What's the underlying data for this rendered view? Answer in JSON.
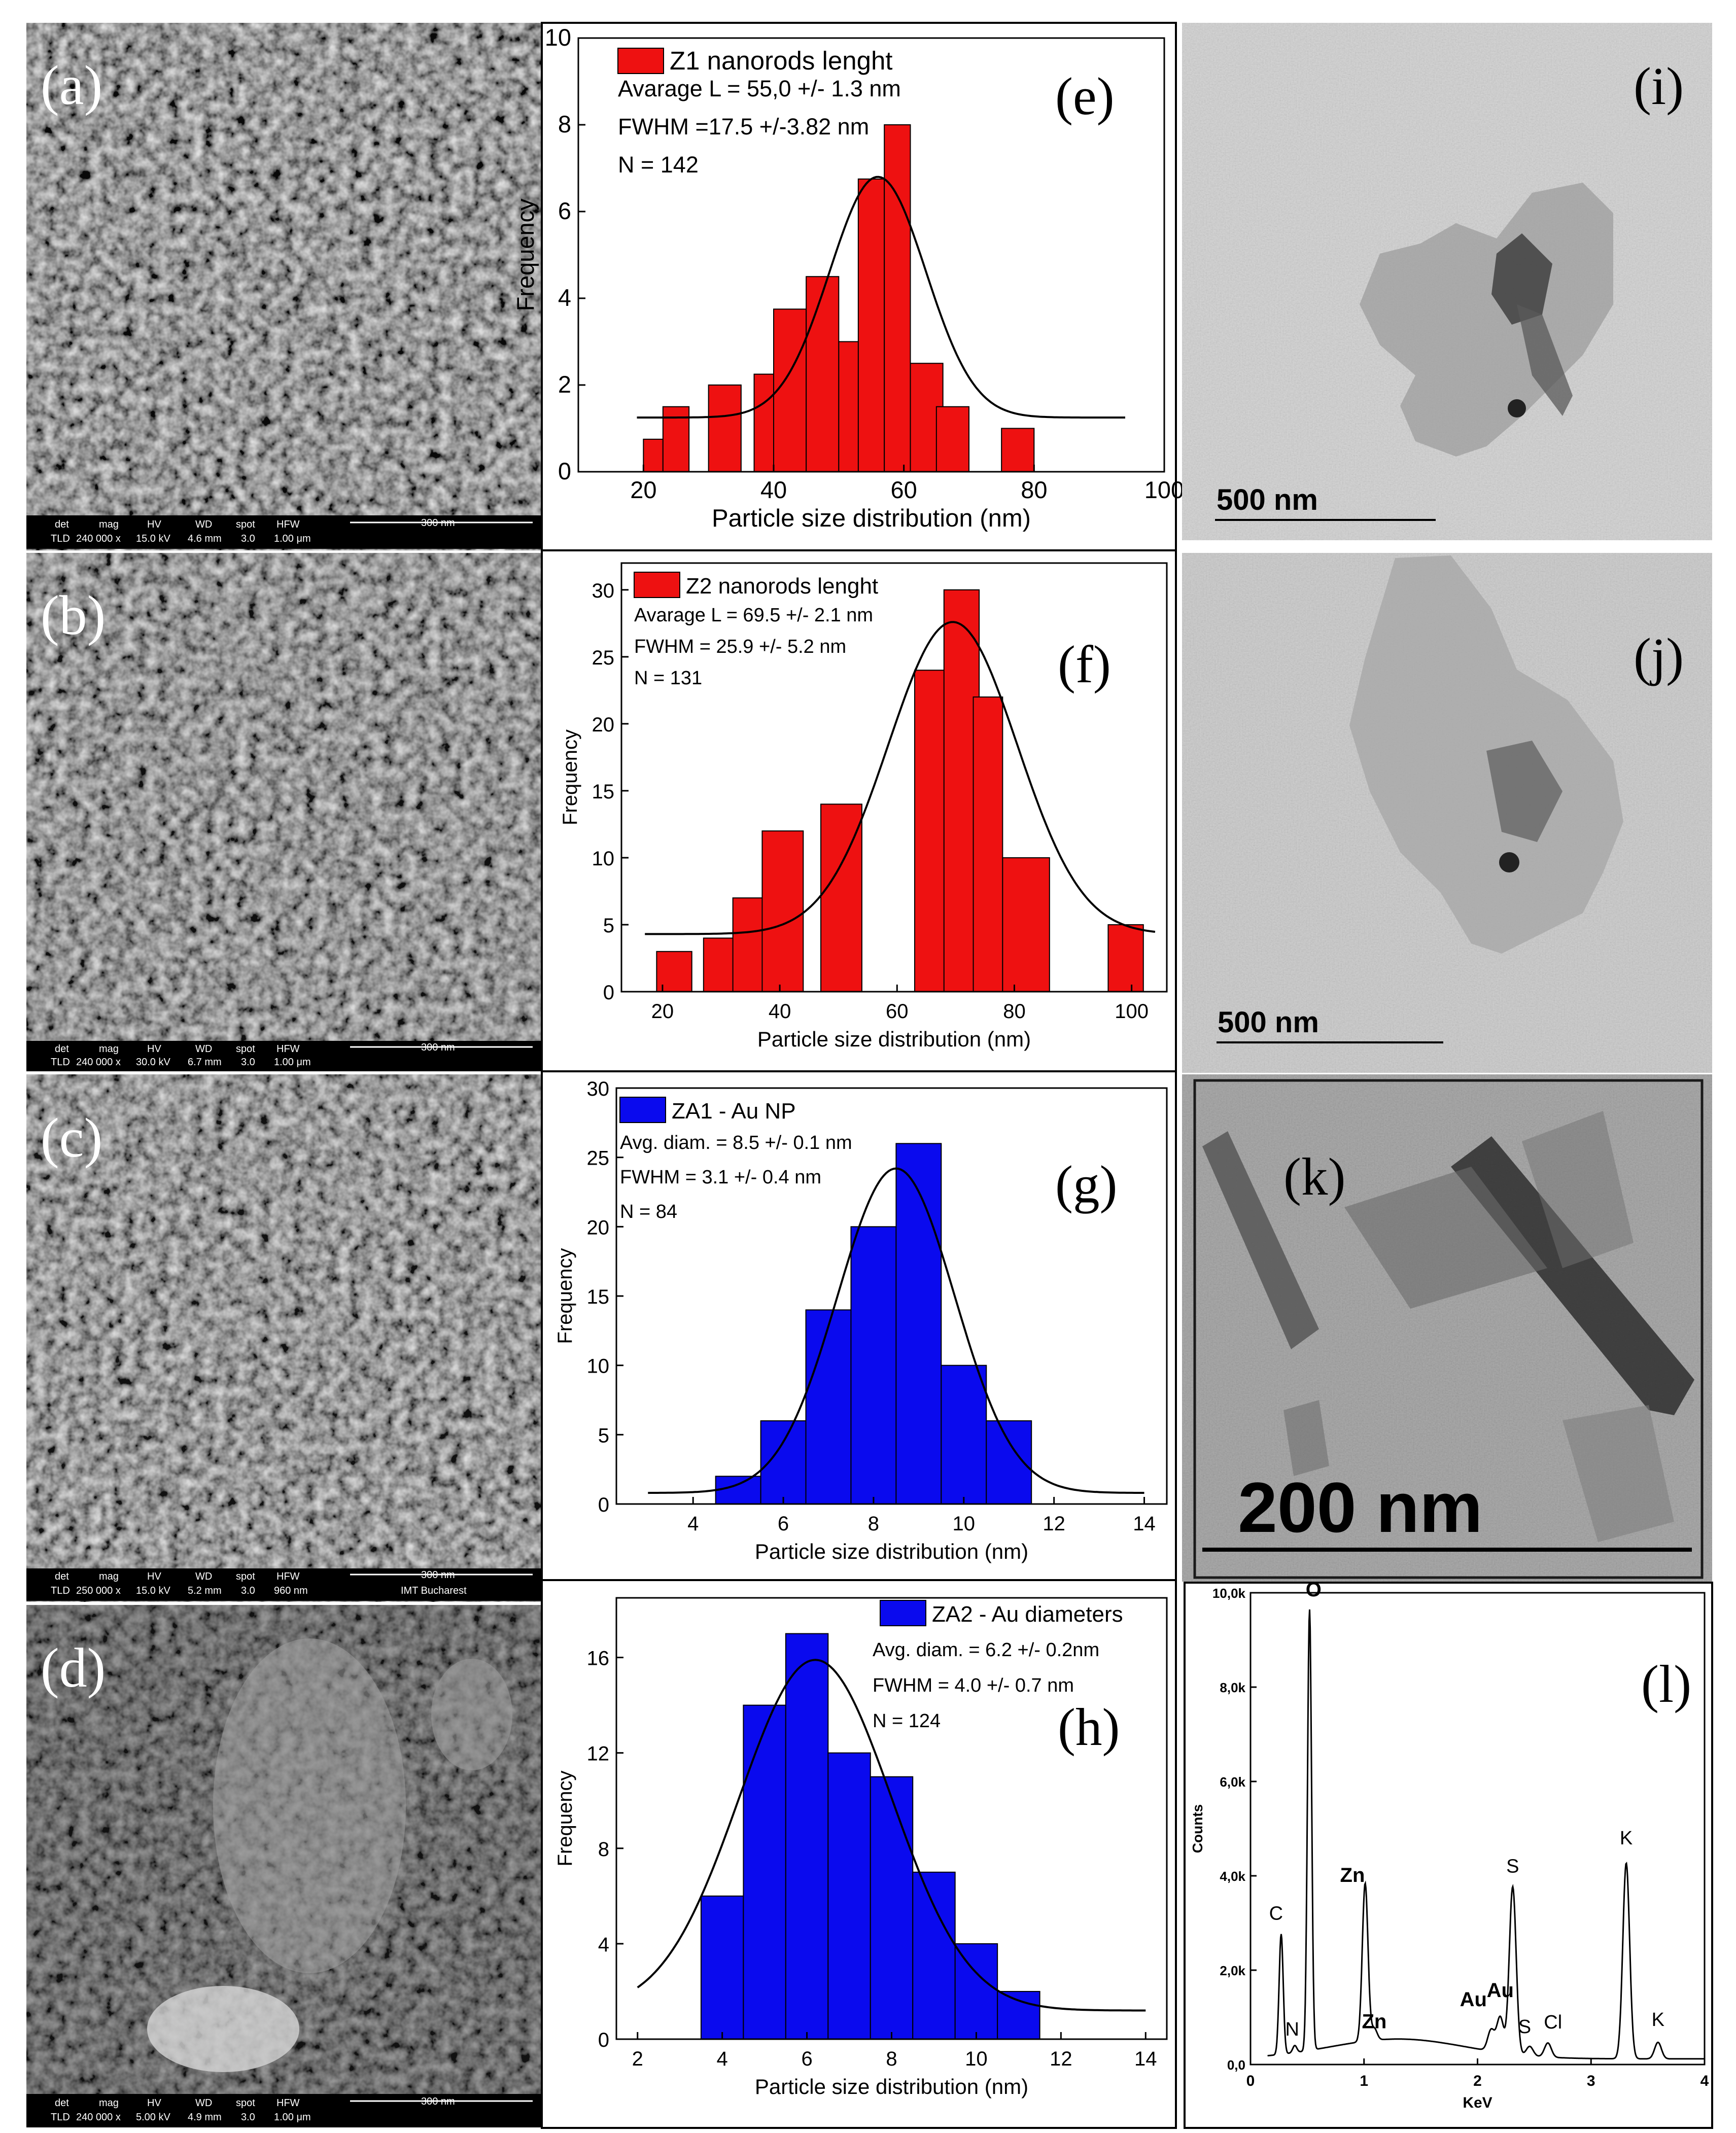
{
  "figure": {
    "sem": [
      {
        "label": "(a)",
        "info": {
          "det": "det",
          "mag": "mag",
          "hv": "HV",
          "wd": "WD",
          "spot": "spot",
          "hfw": "HFW",
          "scale": "300 nm",
          "tld": "TLD",
          "mag_v": "240 000 x",
          "hv_v": "15.0 kV",
          "wd_v": "4.6 mm",
          "spot_v": "3.0",
          "hfw_v": "1.00 μm",
          "extra": ""
        }
      },
      {
        "label": "(b)",
        "info": {
          "det": "det",
          "mag": "mag",
          "hv": "HV",
          "wd": "WD",
          "spot": "spot",
          "hfw": "HFW",
          "scale": "300 nm",
          "tld": "TLD",
          "mag_v": "240 000 x",
          "hv_v": "30.0 kV",
          "wd_v": "6.7 mm",
          "spot_v": "3.0",
          "hfw_v": "1.00 μm",
          "extra": ""
        }
      },
      {
        "label": "(c)",
        "info": {
          "det": "det",
          "mag": "mag",
          "hv": "HV",
          "wd": "WD",
          "spot": "spot",
          "hfw": "HFW",
          "scale": "300 nm",
          "tld": "TLD",
          "mag_v": "250 000 x",
          "hv_v": "15.0 kV",
          "wd_v": "5.2 mm",
          "spot_v": "3.0",
          "hfw_v": "960 nm",
          "extra": "IMT Bucharest"
        }
      },
      {
        "label": "(d)",
        "info": {
          "det": "det",
          "mag": "mag",
          "hv": "HV",
          "wd": "WD",
          "spot": "spot",
          "hfw": "HFW",
          "scale": "300 nm",
          "tld": "TLD",
          "mag_v": "240 000 x",
          "hv_v": "5.00 kV",
          "wd_v": "4.9 mm",
          "spot_v": "3.0",
          "hfw_v": "1.00 μm",
          "extra": ""
        }
      }
    ],
    "tem": [
      {
        "label": "(i)",
        "scale": "500 nm"
      },
      {
        "label": "(j)",
        "scale": "500 nm"
      },
      {
        "label": "(k)",
        "scale": "200 nm"
      }
    ]
  },
  "colors": {
    "red": "#ee1111",
    "blue": "#0a0aee",
    "outline": "#000000"
  },
  "chart_data": [
    {
      "type": "bar",
      "panel": "(e)",
      "legend": "Z1 nanorods lenght",
      "stats": [
        "Avarage L = 55,0 +/- 1.3 nm",
        "FWHM =17.5 +/-3.82 nm",
        "N = 142"
      ],
      "xlabel": "Particle size distribution (nm)",
      "ylabel": "Frequency",
      "xlim": [
        10,
        100
      ],
      "ylim": [
        0,
        10
      ],
      "xticks": [
        20,
        40,
        60,
        80,
        100
      ],
      "yticks": [
        0,
        2,
        4,
        6,
        8,
        10
      ],
      "bars": [
        {
          "x0": 20,
          "x1": 23,
          "y": 0.75
        },
        {
          "x0": 23,
          "x1": 27,
          "y": 1.5
        },
        {
          "x0": 30,
          "x1": 35,
          "y": 2
        },
        {
          "x0": 37,
          "x1": 40,
          "y": 2.25
        },
        {
          "x0": 40,
          "x1": 45,
          "y": 3.75
        },
        {
          "x0": 45,
          "x1": 50,
          "y": 4.5
        },
        {
          "x0": 50,
          "x1": 55,
          "y": 3
        },
        {
          "x0": 53,
          "x1": 57,
          "y": 6.75
        },
        {
          "x0": 57,
          "x1": 61,
          "y": 8
        },
        {
          "x0": 61,
          "x1": 66,
          "y": 2.5
        },
        {
          "x0": 65,
          "x1": 70,
          "y": 1.5
        },
        {
          "x0": 75,
          "x1": 80,
          "y": 1
        }
      ],
      "fit": {
        "base": 1.25,
        "amp": 5.55,
        "center": 56,
        "sigma": 7.4,
        "from": 19,
        "to": 94
      }
    },
    {
      "type": "bar",
      "panel": "(f)",
      "legend": "Z2 nanorods lenght",
      "stats": [
        "Avarage L = 69.5 +/- 2.1 nm",
        "FWHM = 25.9 +/- 5.2 nm",
        "N = 131"
      ],
      "xlabel": "Particle size distribution (nm)",
      "ylabel": "Frequency",
      "xlim": [
        13,
        106
      ],
      "ylim": [
        0,
        32
      ],
      "xticks": [
        20,
        40,
        60,
        80,
        100
      ],
      "yticks": [
        0,
        5,
        10,
        15,
        20,
        25,
        30
      ],
      "bars": [
        {
          "x0": 19,
          "x1": 25,
          "y": 3
        },
        {
          "x0": 27,
          "x1": 33,
          "y": 4
        },
        {
          "x0": 32,
          "x1": 38,
          "y": 7
        },
        {
          "x0": 37,
          "x1": 44,
          "y": 12
        },
        {
          "x0": 47,
          "x1": 54,
          "y": 14
        },
        {
          "x0": 63,
          "x1": 69,
          "y": 24
        },
        {
          "x0": 68,
          "x1": 74,
          "y": 30
        },
        {
          "x0": 73,
          "x1": 78,
          "y": 22
        },
        {
          "x0": 78,
          "x1": 86,
          "y": 10
        },
        {
          "x0": 96,
          "x1": 102,
          "y": 5
        }
      ],
      "fit": {
        "base": 4.3,
        "amp": 23.3,
        "center": 69.5,
        "sigma": 11,
        "from": 17,
        "to": 104
      }
    },
    {
      "type": "bar",
      "panel": "(g)",
      "legend": "ZA1 - Au NP",
      "stats": [
        "Avg. diam. =  8.5 +/- 0.1 nm",
        "FWHM = 3.1 +/- 0.4 nm",
        "N = 84"
      ],
      "xlabel": "Particle size distribution (nm)",
      "ylabel": "Frequency",
      "xlim": [
        2.3,
        14.5
      ],
      "ylim": [
        0,
        30
      ],
      "xticks": [
        4,
        6,
        8,
        10,
        12,
        14
      ],
      "yticks": [
        0,
        5,
        10,
        15,
        20,
        25,
        30
      ],
      "bars": [
        {
          "x0": 4.5,
          "x1": 5.5,
          "y": 2
        },
        {
          "x0": 5.5,
          "x1": 6.5,
          "y": 6
        },
        {
          "x0": 6.5,
          "x1": 7.5,
          "y": 14
        },
        {
          "x0": 7.5,
          "x1": 8.5,
          "y": 20
        },
        {
          "x0": 8.5,
          "x1": 9.5,
          "y": 26
        },
        {
          "x0": 9.5,
          "x1": 10.5,
          "y": 10
        },
        {
          "x0": 10.5,
          "x1": 11.5,
          "y": 6
        }
      ],
      "fit": {
        "base": 0.8,
        "amp": 23.4,
        "center": 8.5,
        "sigma": 1.3,
        "from": 3,
        "to": 14
      }
    },
    {
      "type": "bar",
      "panel": "(h)",
      "legend": "ZA2 - Au diameters",
      "stats": [
        "Avg. diam. = 6.2 +/- 0.2nm",
        "FWHM = 4.0 +/- 0.7 nm",
        "N = 124"
      ],
      "xlabel": "Particle size distribution (nm)",
      "ylabel": "Frequency",
      "xlim": [
        1.5,
        14.5
      ],
      "ylim": [
        0,
        18.5
      ],
      "xticks": [
        2,
        4,
        6,
        8,
        10,
        12,
        14
      ],
      "yticks": [
        0,
        4,
        8,
        12,
        16
      ],
      "bars": [
        {
          "x0": 3.5,
          "x1": 4.5,
          "y": 6
        },
        {
          "x0": 4.5,
          "x1": 5.5,
          "y": 14
        },
        {
          "x0": 5.5,
          "x1": 6.5,
          "y": 17
        },
        {
          "x0": 6.5,
          "x1": 7.5,
          "y": 12
        },
        {
          "x0": 7.5,
          "x1": 8.5,
          "y": 11
        },
        {
          "x0": 8.5,
          "x1": 9.5,
          "y": 7
        },
        {
          "x0": 9.5,
          "x1": 10.5,
          "y": 4
        },
        {
          "x0": 10.5,
          "x1": 11.5,
          "y": 2
        }
      ],
      "fit": {
        "base": 1.2,
        "amp": 14.7,
        "center": 6.2,
        "sigma": 1.8,
        "from": 2,
        "to": 14
      }
    },
    {
      "type": "line",
      "panel": "(l)",
      "xlabel": "KeV",
      "ylabel": "Counts",
      "xlim": [
        0,
        4
      ],
      "ylim": [
        0,
        10000
      ],
      "xticks": [
        0,
        1,
        2,
        3,
        4
      ],
      "yticks": [
        0,
        2000,
        4000,
        6000,
        8000,
        10000
      ],
      "ytick_labels": [
        "0,0",
        "2,0k",
        "4,0k",
        "6,0k",
        "8,0k",
        "10,0k"
      ],
      "peaks": [
        {
          "x": 0.27,
          "y": 2800,
          "label": "C",
          "bold": false
        },
        {
          "x": 0.39,
          "y": 400,
          "label": "N",
          "bold": false
        },
        {
          "x": 0.52,
          "y": 9600,
          "label": "O",
          "bold": true
        },
        {
          "x": 1.01,
          "y": 3600,
          "label": "Zn",
          "bold": true
        },
        {
          "x": 1.09,
          "y": 500,
          "label": "Zn",
          "bold": true
        },
        {
          "x": 2.12,
          "y": 700,
          "label": "Au",
          "bold": true
        },
        {
          "x": 2.2,
          "y": 1000,
          "label": "Au",
          "bold": true
        },
        {
          "x": 2.31,
          "y": 3800,
          "label": "S",
          "bold": false
        },
        {
          "x": 2.46,
          "y": 450,
          "label": "S",
          "bold": false
        },
        {
          "x": 2.62,
          "y": 550,
          "label": "Cl",
          "bold": false
        },
        {
          "x": 3.31,
          "y": 4400,
          "label": "K",
          "bold": false
        },
        {
          "x": 3.59,
          "y": 600,
          "label": "K",
          "bold": false
        }
      ]
    }
  ]
}
